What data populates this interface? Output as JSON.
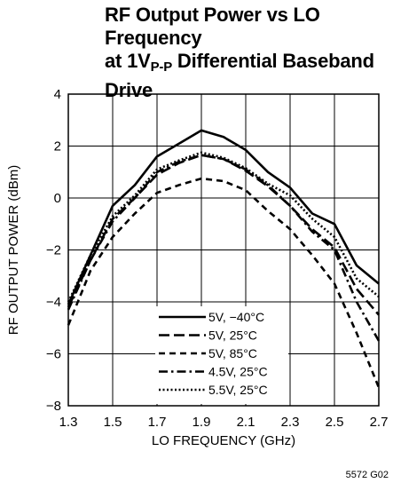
{
  "chart_data": {
    "type": "line",
    "title_line1": "RF Output Power vs LO Frequency",
    "title_line2_pre": "at 1V",
    "title_line2_sub": "P-P",
    "title_line2_post": " Differential Baseband",
    "title_line3": "Drive",
    "xlabel": "LO FREQUENCY (GHz)",
    "ylabel": "RF OUTPUT POWER (dBm)",
    "xlim": [
      1.3,
      2.7
    ],
    "ylim": [
      -8,
      4
    ],
    "xticks": [
      "1.3",
      "1.5",
      "1.7",
      "1.9",
      "2.1",
      "2.3",
      "2.5",
      "2.7"
    ],
    "yticks": [
      "4",
      "2",
      "0",
      "−2",
      "−4",
      "−6",
      "−8"
    ],
    "grid": true,
    "legend_position": "bottom-center",
    "figure_id": "5572 G02",
    "x": [
      1.3,
      1.4,
      1.5,
      1.6,
      1.7,
      1.8,
      1.9,
      2.0,
      2.1,
      2.2,
      2.3,
      2.4,
      2.5,
      2.6,
      2.7
    ],
    "series": [
      {
        "name": "5V, −40°C",
        "dash": "solid",
        "values": [
          -4.1,
          -2.2,
          -0.3,
          0.5,
          1.6,
          2.1,
          2.6,
          2.35,
          1.85,
          1.0,
          0.4,
          -0.6,
          -1.0,
          -2.6,
          -3.3
        ]
      },
      {
        "name": "5V, 25°C",
        "dash": "dash",
        "values": [
          -4.2,
          -2.4,
          -0.8,
          0.0,
          0.9,
          1.35,
          1.65,
          1.5,
          1.05,
          0.45,
          -0.3,
          -1.2,
          -1.9,
          -3.5,
          -4.5
        ]
      },
      {
        "name": "5V, 85°C",
        "dash": "shortdash",
        "values": [
          -4.9,
          -2.8,
          -1.5,
          -0.6,
          0.2,
          0.5,
          0.75,
          0.65,
          0.3,
          -0.5,
          -1.2,
          -2.2,
          -3.3,
          -5.2,
          -7.3
        ]
      },
      {
        "name": "4.5V, 25°C",
        "dash": "dashdot",
        "values": [
          -4.3,
          -2.4,
          -0.9,
          0.0,
          1.0,
          1.4,
          1.65,
          1.5,
          1.1,
          0.5,
          -0.3,
          -1.3,
          -2.0,
          -4.0,
          -5.5
        ]
      },
      {
        "name": "5.5V, 25°C",
        "dash": "dot",
        "values": [
          -4.0,
          -2.2,
          -0.7,
          0.1,
          1.1,
          1.45,
          1.75,
          1.55,
          1.15,
          0.55,
          0.1,
          -0.8,
          -1.5,
          -3.1,
          -3.8
        ]
      }
    ]
  }
}
